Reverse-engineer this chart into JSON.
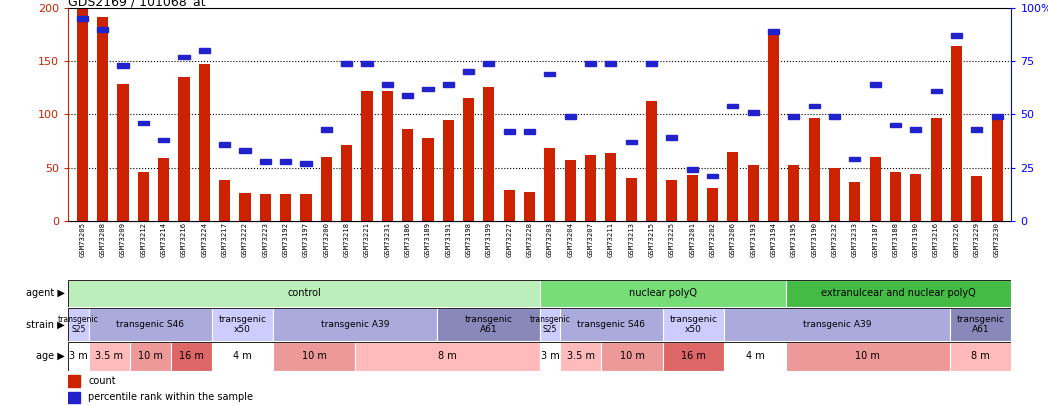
{
  "title": "GDS2169 / 101068_at",
  "samples": [
    "GSM73205",
    "GSM73208",
    "GSM73209",
    "GSM73212",
    "GSM73214",
    "GSM73216",
    "GSM73224",
    "GSM73217",
    "GSM73222",
    "GSM73223",
    "GSM73192",
    "GSM73197",
    "GSM73200",
    "GSM73218",
    "GSM73221",
    "GSM73231",
    "GSM73186",
    "GSM73189",
    "GSM73191",
    "GSM73198",
    "GSM73199",
    "GSM73227",
    "GSM73228",
    "GSM73203",
    "GSM73204",
    "GSM73207",
    "GSM73211",
    "GSM73213",
    "GSM73215",
    "GSM73225",
    "GSM73201",
    "GSM73202",
    "GSM73206",
    "GSM73193",
    "GSM73194",
    "GSM73195",
    "GSM73190",
    "GSM73232",
    "GSM73233",
    "GSM73187",
    "GSM73188",
    "GSM73190",
    "GSM73216",
    "GSM73226",
    "GSM73229",
    "GSM73230"
  ],
  "count_values": [
    200,
    192,
    129,
    46,
    59,
    135,
    147,
    38,
    26,
    25,
    25,
    25,
    60,
    71,
    122,
    122,
    86,
    78,
    95,
    115,
    126,
    29,
    27,
    68,
    57,
    62,
    64,
    40,
    113,
    38,
    43,
    31,
    65,
    52,
    178,
    52,
    97,
    50,
    36,
    60,
    46,
    44,
    97,
    164,
    42,
    100
  ],
  "percentile_values": [
    95,
    90,
    73,
    46,
    38,
    77,
    80,
    36,
    33,
    28,
    28,
    27,
    43,
    74,
    74,
    64,
    59,
    62,
    64,
    70,
    74,
    42,
    42,
    69,
    49,
    74,
    74,
    37,
    74,
    39,
    24,
    21,
    54,
    51,
    89,
    49,
    54,
    49,
    29,
    64,
    45,
    43,
    61,
    87,
    43,
    49
  ],
  "ylim": [
    0,
    200
  ],
  "yticks_left": [
    0,
    50,
    100,
    150,
    200
  ],
  "yticks_right": [
    0,
    25,
    50,
    75,
    100
  ],
  "bar_color": "#CC2200",
  "dot_color": "#2222CC",
  "agent_groups": [
    {
      "label": "control",
      "start": 0,
      "end": 23,
      "color": "#BBEEBB"
    },
    {
      "label": "nuclear polyQ",
      "start": 23,
      "end": 35,
      "color": "#77DD77"
    },
    {
      "label": "extranulcear and nuclear polyQ",
      "start": 35,
      "end": 46,
      "color": "#44BB44"
    }
  ],
  "strain_groups": [
    {
      "label": "transgenic\nS25",
      "start": 0,
      "end": 1,
      "color": "#CCCCFF"
    },
    {
      "label": "transgenic S46",
      "start": 1,
      "end": 7,
      "color": "#AAAADD"
    },
    {
      "label": "transgenic\nx50",
      "start": 7,
      "end": 10,
      "color": "#CCCCFF"
    },
    {
      "label": "transgenic A39",
      "start": 10,
      "end": 18,
      "color": "#AAAADD"
    },
    {
      "label": "transgenic\nA61",
      "start": 18,
      "end": 23,
      "color": "#8888BB"
    },
    {
      "label": "transgenic\nS25",
      "start": 23,
      "end": 24,
      "color": "#CCCCFF"
    },
    {
      "label": "transgenic S46",
      "start": 24,
      "end": 29,
      "color": "#AAAADD"
    },
    {
      "label": "transgenic\nx50",
      "start": 29,
      "end": 32,
      "color": "#CCCCFF"
    },
    {
      "label": "transgenic A39",
      "start": 32,
      "end": 43,
      "color": "#AAAADD"
    },
    {
      "label": "transgenic\nA61",
      "start": 43,
      "end": 46,
      "color": "#8888BB"
    }
  ],
  "age_groups": [
    {
      "label": "3 m",
      "start": 0,
      "end": 1,
      "color": "#FFFFFF"
    },
    {
      "label": "3.5 m",
      "start": 1,
      "end": 3,
      "color": "#FFBBBB"
    },
    {
      "label": "10 m",
      "start": 3,
      "end": 5,
      "color": "#EE9999"
    },
    {
      "label": "16 m",
      "start": 5,
      "end": 7,
      "color": "#DD6666"
    },
    {
      "label": "4 m",
      "start": 7,
      "end": 10,
      "color": "#FFFFFF"
    },
    {
      "label": "10 m",
      "start": 10,
      "end": 14,
      "color": "#EE9999"
    },
    {
      "label": "8 m",
      "start": 14,
      "end": 23,
      "color": "#FFBBBB"
    },
    {
      "label": "3 m",
      "start": 23,
      "end": 24,
      "color": "#FFFFFF"
    },
    {
      "label": "3.5 m",
      "start": 24,
      "end": 26,
      "color": "#FFBBBB"
    },
    {
      "label": "10 m",
      "start": 26,
      "end": 29,
      "color": "#EE9999"
    },
    {
      "label": "16 m",
      "start": 29,
      "end": 32,
      "color": "#DD6666"
    },
    {
      "label": "4 m",
      "start": 32,
      "end": 35,
      "color": "#FFFFFF"
    },
    {
      "label": "10 m",
      "start": 35,
      "end": 43,
      "color": "#EE9999"
    },
    {
      "label": "8 m",
      "start": 43,
      "end": 46,
      "color": "#FFBBBB"
    }
  ]
}
